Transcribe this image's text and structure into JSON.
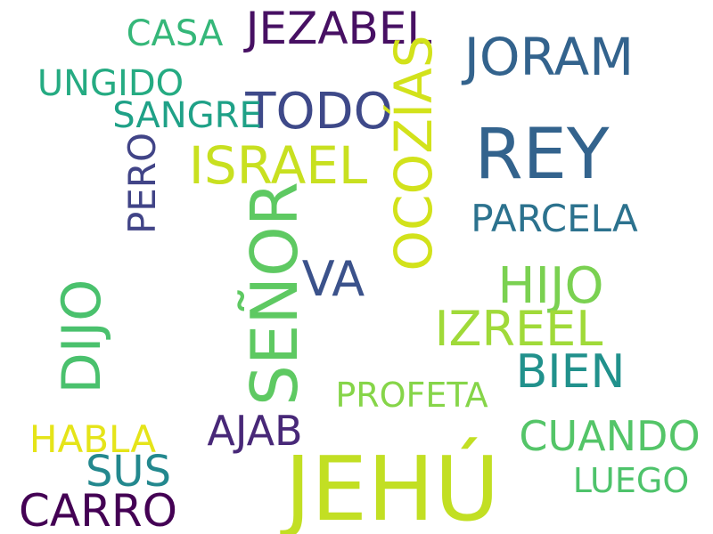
{
  "words": {
    "jehu": {
      "text": "JEHÚ",
      "color": "#c2df23"
    },
    "rey": {
      "text": "REY",
      "color": "#33638d"
    },
    "senor": {
      "text": "SEÑOR",
      "color": "#5ec962"
    },
    "israel": {
      "text": "ISRAEL",
      "color": "#c8e020"
    },
    "jezabel": {
      "text": "JEZABEL",
      "color": "#471063"
    },
    "joram": {
      "text": "JORAM",
      "color": "#33638d"
    },
    "todo": {
      "text": "TODO",
      "color": "#3e4989"
    },
    "ocozias": {
      "text": "OCOZÍAS",
      "color": "#d2e21b"
    },
    "hijo": {
      "text": "HIJO",
      "color": "#7ad151"
    },
    "izreel": {
      "text": "IZREEL",
      "color": "#a0da39"
    },
    "va": {
      "text": "VA",
      "color": "#3b528b"
    },
    "dijo": {
      "text": "DIJO",
      "color": "#4ac16d"
    },
    "bien": {
      "text": "BIEN",
      "color": "#21918c"
    },
    "parcela": {
      "text": "PARCELA",
      "color": "#2c728e"
    },
    "casa": {
      "text": "CASA",
      "color": "#35b779"
    },
    "ungido": {
      "text": "UNGIDO",
      "color": "#25ab82"
    },
    "sangre": {
      "text": "SANGRE",
      "color": "#1fa187"
    },
    "pero": {
      "text": "PERO",
      "color": "#414487"
    },
    "profeta": {
      "text": "PROFETA",
      "color": "#86d549"
    },
    "ajab": {
      "text": "AJAB",
      "color": "#482878"
    },
    "habla": {
      "text": "HABLA",
      "color": "#e5e419"
    },
    "cuando": {
      "text": "CUANDO",
      "color": "#54c568"
    },
    "sus": {
      "text": "SUS",
      "color": "#23888e"
    },
    "luego": {
      "text": "LUEGO",
      "color": "#4ec36b"
    },
    "carro": {
      "text": "CARRO",
      "color": "#440154"
    }
  }
}
